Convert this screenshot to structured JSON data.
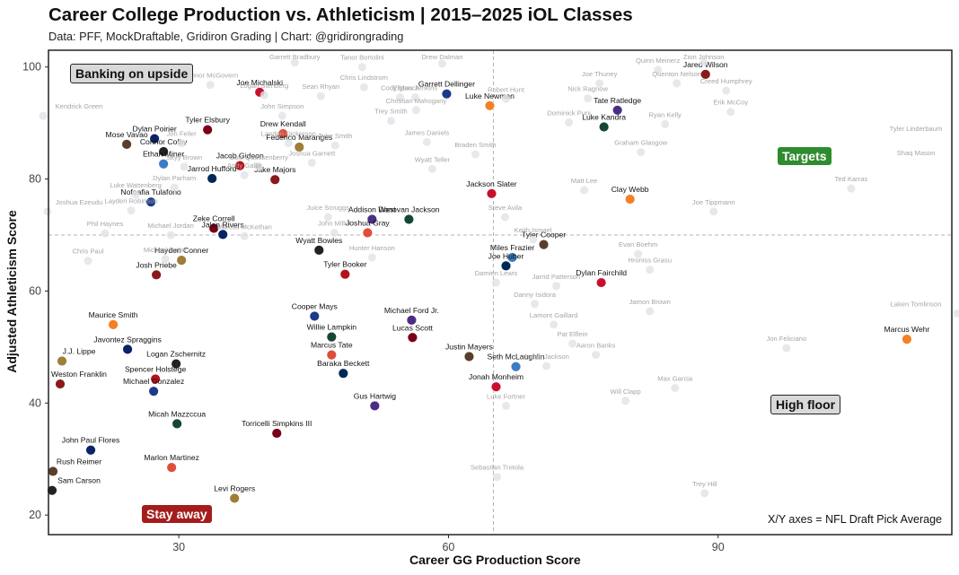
{
  "header": {
    "title": "Career College Production vs. Athleticism | 2015–2025 iOL Classes",
    "subtitle": "Data: PFF, MockDraftable, Gridiron Grading | Chart: @gridirongrading"
  },
  "quadrants": {
    "top_left": "Banking on upside",
    "top_right": "Targets",
    "bottom_left": "Stay away",
    "bottom_right": "High floor"
  },
  "axes_note": "X/Y axes = NFL Draft Pick Average",
  "colors": {
    "highlight_label": "#111111",
    "faded_label": "#a6a6a6",
    "reference_line": "#b3b3b3",
    "targets": "#2e8b2e",
    "stay_away": "#a51c1c",
    "neutral_box": "#d9d9d9"
  },
  "chart_data": {
    "type": "scatter",
    "xlabel": "Career GG Production Score",
    "ylabel": "Adjusted Athleticism Score",
    "xlim": [
      15.5,
      116
    ],
    "ylim": [
      16.5,
      103
    ],
    "xticks": [
      30,
      60,
      90
    ],
    "yticks": [
      20,
      40,
      60,
      80,
      100
    ],
    "reference_lines": {
      "x": 65,
      "y": 70
    },
    "grid": false,
    "legend": "none",
    "points": [
      {
        "name": "Jared Wilson",
        "x": 88.6,
        "y": 98.7,
        "hl": true
      },
      {
        "name": "Joe Michalski",
        "x": 39,
        "y": 95.5,
        "hl": true
      },
      {
        "name": "Garrett Dellinger",
        "x": 59.8,
        "y": 95.2,
        "hl": true
      },
      {
        "name": "Luke Newman",
        "x": 64.6,
        "y": 93.1,
        "hl": true
      },
      {
        "name": "Tate Ratledge",
        "x": 78.8,
        "y": 92.3,
        "hl": true
      },
      {
        "name": "Luke Kandra",
        "x": 77.3,
        "y": 89.3,
        "hl": true
      },
      {
        "name": "Tyler Elsbury",
        "x": 33.2,
        "y": 88.8,
        "hl": true
      },
      {
        "name": "Dylan Poirier",
        "x": 27.3,
        "y": 87.2,
        "hl": true
      },
      {
        "name": "Drew Kendall",
        "x": 41.6,
        "y": 88.1,
        "hl": true
      },
      {
        "name": "Mose Vavao",
        "x": 24.2,
        "y": 86.2,
        "hl": true
      },
      {
        "name": "Connor Colby",
        "x": 28.3,
        "y": 84.9,
        "hl": true
      },
      {
        "name": "Federico Maranges",
        "x": 43.4,
        "y": 85.7,
        "hl": true
      },
      {
        "name": "Ethan Miner",
        "x": 28.3,
        "y": 82.7,
        "hl": true
      },
      {
        "name": "Jacob Gideon",
        "x": 36.8,
        "y": 82.4,
        "hl": true
      },
      {
        "name": "Jarrod Hufford",
        "x": 33.7,
        "y": 80.1,
        "hl": true
      },
      {
        "name": "Jake Majors",
        "x": 40.7,
        "y": 79.9,
        "hl": true
      },
      {
        "name": "Jackson Slater",
        "x": 64.8,
        "y": 77.4,
        "hl": true
      },
      {
        "name": "Nofoafia Tulafono",
        "x": 26.9,
        "y": 75.9,
        "hl": true
      },
      {
        "name": "Clay Webb",
        "x": 80.2,
        "y": 76.4,
        "hl": true
      },
      {
        "name": "Addison West",
        "x": 51.5,
        "y": 72.8,
        "hl": true
      },
      {
        "name": "Donovan Jackson",
        "x": 55.6,
        "y": 72.8,
        "hl": true
      },
      {
        "name": "Zeke Correll",
        "x": 33.9,
        "y": 71.2,
        "hl": true
      },
      {
        "name": "Jalen Rivers",
        "x": 34.9,
        "y": 70.1,
        "hl": true
      },
      {
        "name": "Joshua Gray",
        "x": 51,
        "y": 70.4,
        "hl": true
      },
      {
        "name": "Tyler Cooper",
        "x": 70.6,
        "y": 68.3,
        "hl": true
      },
      {
        "name": "Wyatt Bowles",
        "x": 45.6,
        "y": 67.3,
        "hl": true
      },
      {
        "name": "Hayden Conner",
        "x": 30.3,
        "y": 65.5,
        "hl": true
      },
      {
        "name": "Miles Frazier",
        "x": 67.1,
        "y": 66,
        "hl": true
      },
      {
        "name": "Tyler Booker",
        "x": 48.5,
        "y": 63,
        "hl": true
      },
      {
        "name": "Joe Huber",
        "x": 66.4,
        "y": 64.5,
        "hl": true
      },
      {
        "name": "Josh Priebe",
        "x": 27.5,
        "y": 62.9,
        "hl": true
      },
      {
        "name": "Dylan Fairchild",
        "x": 77,
        "y": 61.5,
        "hl": true
      },
      {
        "name": "Cooper Mays",
        "x": 45.1,
        "y": 55.5,
        "hl": true
      },
      {
        "name": "Maurice Smith",
        "x": 22.7,
        "y": 54,
        "hl": true
      },
      {
        "name": "Michael Ford Jr.",
        "x": 55.9,
        "y": 54.8,
        "hl": true
      },
      {
        "name": "Willie Lampkin",
        "x": 47,
        "y": 51.8,
        "hl": true
      },
      {
        "name": "Lucas Scott",
        "x": 56,
        "y": 51.7,
        "hl": true
      },
      {
        "name": "Javontez Spraggins",
        "x": 24.3,
        "y": 49.6,
        "hl": true
      },
      {
        "name": "Marcus Tate",
        "x": 47,
        "y": 48.6,
        "hl": true
      },
      {
        "name": "Justin Mayers",
        "x": 62.3,
        "y": 48.3,
        "hl": true
      },
      {
        "name": "Logan Zschernitz",
        "x": 29.7,
        "y": 47,
        "hl": true
      },
      {
        "name": "J.J. Lippe",
        "x": 17,
        "y": 47.5,
        "hl": true
      },
      {
        "name": "Seth McLaughlin",
        "x": 67.5,
        "y": 46.5,
        "hl": true
      },
      {
        "name": "Spencer Holstege",
        "x": 27.4,
        "y": 44.3,
        "hl": true
      },
      {
        "name": "Baraka Beckett",
        "x": 48.3,
        "y": 45.3,
        "hl": true
      },
      {
        "name": "Weston Franklin",
        "x": 16.8,
        "y": 43.4,
        "hl": true
      },
      {
        "name": "Jonah Monheim",
        "x": 65.3,
        "y": 42.9,
        "hl": true
      },
      {
        "name": "Michael Gonzalez",
        "x": 27.2,
        "y": 42.1,
        "hl": true
      },
      {
        "name": "Marcus Wehr",
        "x": 111,
        "y": 51.4,
        "hl": true
      },
      {
        "name": "Gus Hartwig",
        "x": 51.8,
        "y": 39.5,
        "hl": true
      },
      {
        "name": "Micah Mazzccua",
        "x": 29.8,
        "y": 36.3,
        "hl": true
      },
      {
        "name": "Torricelli Simpkins III",
        "x": 40.9,
        "y": 34.6,
        "hl": true
      },
      {
        "name": "John Paul Flores",
        "x": 20.2,
        "y": 31.6,
        "hl": true
      },
      {
        "name": "Marlon Martinez",
        "x": 29.2,
        "y": 28.5,
        "hl": true
      },
      {
        "name": "Rush Reimer",
        "x": 16,
        "y": 27.8,
        "hl": true
      },
      {
        "name": "Sam Carson",
        "x": 15.9,
        "y": 24.4,
        "hl": true
      },
      {
        "name": "Levi Rogers",
        "x": 36.2,
        "y": 23,
        "hl": true
      },
      {
        "name": "Zion Johnson",
        "x": 88.4,
        "y": 100.8,
        "hl": false
      },
      {
        "name": "Quinn Meinerz",
        "x": 83.3,
        "y": 99.5,
        "hl": false
      },
      {
        "name": "Garrett Bradbury",
        "x": 42.9,
        "y": 100.8,
        "hl": false
      },
      {
        "name": "Tanor Bortolini",
        "x": 50.4,
        "y": 100,
        "hl": false
      },
      {
        "name": "Drew Dalman",
        "x": 59.3,
        "y": 100.6,
        "hl": false
      },
      {
        "name": "Cole Strange",
        "x": 25.2,
        "y": 98.5,
        "hl": false
      },
      {
        "name": "Connor McGovern",
        "x": 33.5,
        "y": 96.8,
        "hl": false
      },
      {
        "name": "Joe Thuney",
        "x": 76.8,
        "y": 97.1,
        "hl": false
      },
      {
        "name": "Quenton Nelson",
        "x": 85.4,
        "y": 97.1,
        "hl": false
      },
      {
        "name": "Creed Humphrey",
        "x": 90.9,
        "y": 95.8,
        "hl": false
      },
      {
        "name": "Chris Lindstrom",
        "x": 50.6,
        "y": 96.4,
        "hl": false
      },
      {
        "name": "Logan Stenberg",
        "x": 39.5,
        "y": 95,
        "hl": false
      },
      {
        "name": "Sean Rhyan",
        "x": 45.8,
        "y": 94.8,
        "hl": false
      },
      {
        "name": "Cody Mauch",
        "x": 54.6,
        "y": 94.6,
        "hl": false
      },
      {
        "name": "Elgton Jenkins",
        "x": 56.3,
        "y": 94.6,
        "hl": false
      },
      {
        "name": "Robert Hunt",
        "x": 66.4,
        "y": 94.3,
        "hl": false
      },
      {
        "name": "Nick Ragnow",
        "x": 75.5,
        "y": 94.4,
        "hl": false
      },
      {
        "name": "Christian Mahogany",
        "x": 56.4,
        "y": 92.3,
        "hl": false
      },
      {
        "name": "Kendrick Green",
        "x": 14.9,
        "y": 91.3,
        "hl": false
      },
      {
        "name": "John Simpson",
        "x": 41.5,
        "y": 91.3,
        "hl": false
      },
      {
        "name": "Trey Smith",
        "x": 53.6,
        "y": 90.4,
        "hl": false
      },
      {
        "name": "Erik McCoy",
        "x": 91.4,
        "y": 92,
        "hl": false
      },
      {
        "name": "Dominick Puni",
        "x": 73.4,
        "y": 90.1,
        "hl": false
      },
      {
        "name": "Ryan Kelly",
        "x": 84.1,
        "y": 89.8,
        "hl": false
      },
      {
        "name": "Tyler Linderbaum",
        "x": 119.8,
        "y": 87.3,
        "hl": false
      },
      {
        "name": "Jon Feiler",
        "x": 30.3,
        "y": 86.4,
        "hl": false
      },
      {
        "name": "Landon Dickerson",
        "x": 42.2,
        "y": 86.4,
        "hl": false
      },
      {
        "name": "Tyler Smith",
        "x": 47.4,
        "y": 86,
        "hl": false
      },
      {
        "name": "James Daniels",
        "x": 57.6,
        "y": 86.6,
        "hl": false
      },
      {
        "name": "Graham Glasgow",
        "x": 81.4,
        "y": 84.8,
        "hl": false
      },
      {
        "name": "Braden Smith",
        "x": 63,
        "y": 84.4,
        "hl": false
      },
      {
        "name": "Joshua Garnett",
        "x": 44.8,
        "y": 82.9,
        "hl": false
      },
      {
        "name": "Shaq Mason",
        "x": 121.1,
        "y": 83,
        "hl": false
      },
      {
        "name": "Skyy Brown",
        "x": 30.6,
        "y": 82.2,
        "hl": false
      },
      {
        "name": "Cole Quessenberry",
        "x": 38.9,
        "y": 82.2,
        "hl": false
      },
      {
        "name": "Wyatt Teller",
        "x": 58.2,
        "y": 81.8,
        "hl": false
      },
      {
        "name": "Andy Gallik",
        "x": 37.3,
        "y": 80.7,
        "hl": false
      },
      {
        "name": "Matt Lee",
        "x": 75.1,
        "y": 78,
        "hl": false
      },
      {
        "name": "Ted Karras",
        "x": 104.8,
        "y": 78.3,
        "hl": false
      },
      {
        "name": "Dylan Parham",
        "x": 29.5,
        "y": 78.5,
        "hl": false
      },
      {
        "name": "Luke Wattenberg",
        "x": 25.2,
        "y": 77.2,
        "hl": false
      },
      {
        "name": "Joshua Ezeudu",
        "x": 15.4,
        "y": 74.2,
        "hl": false
      },
      {
        "name": "Layden Robinson",
        "x": 24.7,
        "y": 74.4,
        "hl": false
      },
      {
        "name": "Joe Tippmann",
        "x": 89.5,
        "y": 74.2,
        "hl": false
      },
      {
        "name": "Steve Avila",
        "x": 66.3,
        "y": 73.2,
        "hl": false
      },
      {
        "name": "Juice Scruggs",
        "x": 46.6,
        "y": 73.2,
        "hl": false
      },
      {
        "name": "Phil Haynes",
        "x": 21.8,
        "y": 70.3,
        "hl": false
      },
      {
        "name": "Michael Jordan",
        "x": 29.1,
        "y": 70,
        "hl": false
      },
      {
        "name": "Marcus McKethan",
        "x": 37.3,
        "y": 69.8,
        "hl": false
      },
      {
        "name": "John Miller",
        "x": 47.3,
        "y": 70.4,
        "hl": false
      },
      {
        "name": "Keith Ismael",
        "x": 69.4,
        "y": 69.2,
        "hl": false
      },
      {
        "name": "Chris Paul",
        "x": 19.9,
        "y": 65.4,
        "hl": false
      },
      {
        "name": "Michael Deiter",
        "x": 28.5,
        "y": 65.7,
        "hl": false
      },
      {
        "name": "Hunter Hanson",
        "x": 51.5,
        "y": 66,
        "hl": false
      },
      {
        "name": "Evan Boehm",
        "x": 81.1,
        "y": 66.6,
        "hl": false
      },
      {
        "name": "Hroniss Grasu",
        "x": 82.4,
        "y": 63.8,
        "hl": false
      },
      {
        "name": "Damien Lewis",
        "x": 65.3,
        "y": 61.5,
        "hl": false
      },
      {
        "name": "Jarrid Patterson",
        "x": 72,
        "y": 60.9,
        "hl": false
      },
      {
        "name": "Danny Isidora",
        "x": 69.6,
        "y": 57.7,
        "hl": false
      },
      {
        "name": "Jamon Brown",
        "x": 82.4,
        "y": 56.4,
        "hl": false
      },
      {
        "name": "Laken Tomlinson",
        "x": 116.6,
        "y": 56,
        "hl": false
      },
      {
        "name": "Lamont Gaillard",
        "x": 71.7,
        "y": 54,
        "hl": false
      },
      {
        "name": "Pat Elflein",
        "x": 73.8,
        "y": 50.6,
        "hl": false
      },
      {
        "name": "Aaron Banks",
        "x": 76.4,
        "y": 48.6,
        "hl": false
      },
      {
        "name": "Jon Feliciano",
        "x": 97.6,
        "y": 49.8,
        "hl": false
      },
      {
        "name": "Jonah Jackson",
        "x": 70.9,
        "y": 46.6,
        "hl": false
      },
      {
        "name": "Max Garcia",
        "x": 85.2,
        "y": 42.7,
        "hl": false
      },
      {
        "name": "Will Clapp",
        "x": 79.7,
        "y": 40.4,
        "hl": false
      },
      {
        "name": "Luke Fortner",
        "x": 66.4,
        "y": 39.5,
        "hl": false
      },
      {
        "name": "Sebastian Tretola",
        "x": 65.4,
        "y": 26.8,
        "hl": false
      },
      {
        "name": "Trey Hill",
        "x": 88.5,
        "y": 23.9,
        "hl": false
      }
    ]
  }
}
